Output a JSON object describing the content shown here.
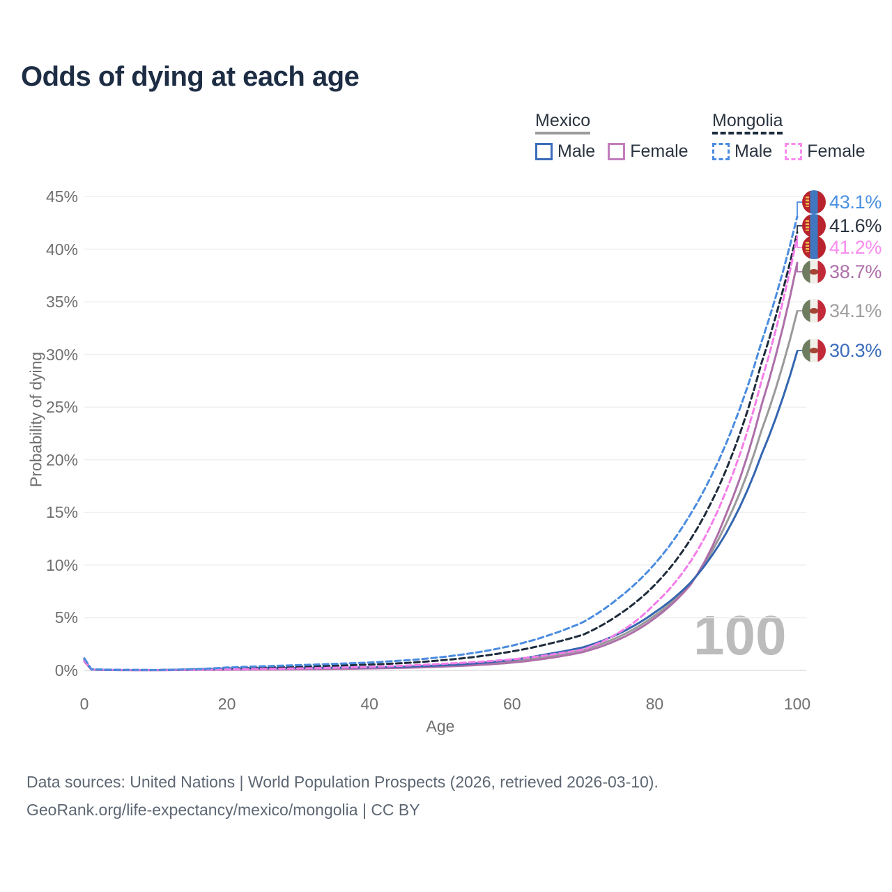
{
  "title": "Odds of dying at each age",
  "legend": {
    "mexico": {
      "label": "Mexico",
      "male": "Male",
      "female": "Female"
    },
    "mongolia": {
      "label": "Mongolia",
      "male": "Male",
      "female": "Female"
    }
  },
  "axes": {
    "y_label": "Probability of dying",
    "x_label": "Age",
    "y_ticks": [
      "0%",
      "5%",
      "10%",
      "15%",
      "20%",
      "25%",
      "30%",
      "35%",
      "40%",
      "45%"
    ],
    "x_ticks": [
      "0",
      "20",
      "40",
      "60",
      "80",
      "100"
    ]
  },
  "watermark": "100",
  "footer": {
    "line1": "Data sources: United Nations | World Population Prospects (2026, retrieved 2026-03-10).",
    "line2": "GeoRank.org/life-expectancy/mexico/mongolia | CC BY"
  },
  "colors": {
    "mexico_male": "#3566b0",
    "mexico_female": "#ae6fa9",
    "mexico_both": "#9a9a9a",
    "mongolia_male": "#4b8ce0",
    "mongolia_female": "#f47ee8",
    "mongolia_both": "#1e2c3c",
    "grid": "#efefef",
    "grid_zero": "#dedede"
  },
  "end_labels": [
    {
      "text": "43.1%",
      "series": "mongolia-male",
      "flag": "mongolia-flag-icon",
      "color": "#4a90e2"
    },
    {
      "text": "41.6%",
      "series": "mongolia-both",
      "flag": "mongolia-flag-icon",
      "color": "#2b3440"
    },
    {
      "text": "41.2%",
      "series": "mongolia-female",
      "flag": "mongolia-flag-icon",
      "color": "#f98bee"
    },
    {
      "text": "38.7%",
      "series": "mexico-female",
      "flag": "mexico-flag-icon",
      "color": "#ae6fa9"
    },
    {
      "text": "34.1%",
      "series": "mexico-both",
      "flag": "mexico-flag-icon",
      "color": "#9e9e9e"
    },
    {
      "text": "30.3%",
      "series": "mexico-male",
      "flag": "mexico-flag-icon",
      "color": "#3c6cba"
    }
  ],
  "chart_data": {
    "type": "line",
    "title": "Odds of dying at each age",
    "xlabel": "Age",
    "ylabel": "Probability of dying",
    "unit": "percent probability of dying at each age",
    "xlim": [
      0,
      100
    ],
    "ylim": [
      0,
      45
    ],
    "grid": "horizontal",
    "legend_position": "top-right",
    "x": [
      0,
      1,
      5,
      10,
      15,
      20,
      25,
      30,
      35,
      40,
      45,
      50,
      55,
      60,
      65,
      70,
      75,
      80,
      85,
      90,
      95,
      100
    ],
    "series": [
      {
        "id": "mexico-both",
        "name": "Mexico (both sexes)",
        "country": "Mexico",
        "style": "solid",
        "color": "#9a9a9a",
        "end_value": 34.1,
        "values": [
          0.93,
          0.075,
          0.028,
          0.025,
          0.065,
          0.12,
          0.15,
          0.17,
          0.2,
          0.24,
          0.3,
          0.41,
          0.58,
          0.86,
          1.33,
          1.95,
          3.2,
          5.2,
          8.2,
          13.9,
          22.8,
          34.1
        ]
      },
      {
        "id": "mexico-female",
        "name": "Mexico Female",
        "country": "Mexico",
        "style": "solid",
        "color": "#ae6fa9",
        "end_value": 38.7,
        "values": [
          0.85,
          0.07,
          0.025,
          0.02,
          0.04,
          0.06,
          0.08,
          0.1,
          0.14,
          0.19,
          0.25,
          0.35,
          0.5,
          0.74,
          1.15,
          1.75,
          2.95,
          4.95,
          8.1,
          14.8,
          25.2,
          38.7
        ]
      },
      {
        "id": "mexico-male",
        "name": "Mexico Male",
        "country": "Mexico",
        "style": "solid",
        "color": "#3566b0",
        "end_value": 30.3,
        "values": [
          1.0,
          0.08,
          0.03,
          0.03,
          0.09,
          0.18,
          0.22,
          0.24,
          0.26,
          0.29,
          0.36,
          0.48,
          0.68,
          1.0,
          1.55,
          2.2,
          3.5,
          5.5,
          8.3,
          13.0,
          20.5,
          30.3
        ]
      },
      {
        "id": "mongolia-both",
        "name": "Mongolia (both sexes)",
        "country": "Mongolia",
        "style": "dashed",
        "color": "#1e2c3c",
        "end_value": 41.6,
        "values": [
          1.05,
          0.09,
          0.045,
          0.035,
          0.09,
          0.2,
          0.28,
          0.36,
          0.45,
          0.55,
          0.7,
          0.95,
          1.3,
          1.8,
          2.5,
          3.4,
          5.3,
          8.1,
          12.4,
          19.0,
          29.2,
          41.6
        ]
      },
      {
        "id": "mongolia-female",
        "name": "Mongolia Female",
        "country": "Mongolia",
        "style": "dashed",
        "color": "#f47ee8",
        "end_value": 41.2,
        "values": [
          0.95,
          0.08,
          0.04,
          0.03,
          0.06,
          0.1,
          0.14,
          0.19,
          0.25,
          0.33,
          0.45,
          0.62,
          0.8,
          1.05,
          1.45,
          2.0,
          3.6,
          6.3,
          10.3,
          17.0,
          27.5,
          41.2
        ]
      },
      {
        "id": "mongolia-male",
        "name": "Mongolia Male",
        "country": "Mongolia",
        "style": "dashed",
        "color": "#4b8ce0",
        "end_value": 43.1,
        "values": [
          1.15,
          0.1,
          0.05,
          0.04,
          0.11,
          0.28,
          0.4,
          0.5,
          0.62,
          0.75,
          0.95,
          1.25,
          1.7,
          2.35,
          3.3,
          4.6,
          6.9,
          10.1,
          14.8,
          21.5,
          31.2,
          43.1
        ]
      }
    ]
  }
}
